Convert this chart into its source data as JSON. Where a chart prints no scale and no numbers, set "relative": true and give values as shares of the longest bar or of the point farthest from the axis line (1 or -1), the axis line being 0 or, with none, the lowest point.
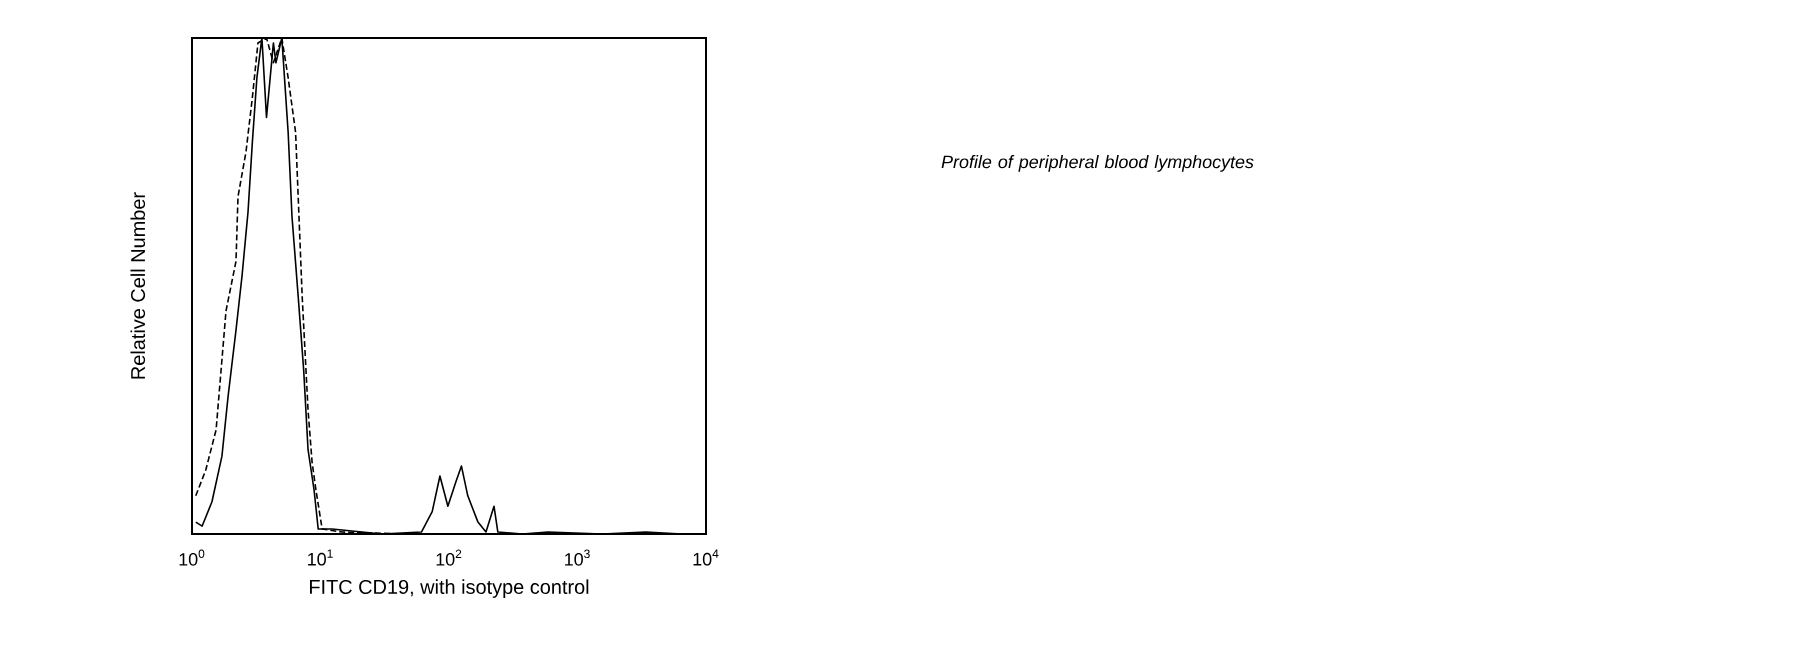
{
  "chart_data": {
    "type": "line",
    "relative": true,
    "log": "x",
    "xlabel": "FITC CD19, with isotype control",
    "ylabel": "Relative Cell Number",
    "xlim": [
      1,
      10000
    ],
    "xticks": [
      {
        "value": 1,
        "label": "10$^{0}$"
      },
      {
        "value": 10,
        "label": "10$^{1}$"
      },
      {
        "value": 100,
        "label": "10$^{2}$"
      },
      {
        "value": 1000,
        "label": "10$^{3}$"
      },
      {
        "value": 10000,
        "label": "10$^{4}$"
      }
    ],
    "annotations": [
      "*Profile of peripheral blood lymphocytes*"
    ],
    "series": [
      {
        "color": "#000000",
        "line_style": "solid",
        "x": [
          1.07,
          1.2,
          1.43,
          1.71,
          1.91,
          2.2,
          2.45,
          2.73,
          2.95,
          3.2,
          3.5,
          3.8,
          4.3,
          4.5,
          5.0,
          5.6,
          6.0,
          6.7,
          7.4,
          8.0,
          8.9,
          9.6,
          12.3,
          30,
          61,
          74,
          85,
          98,
          113,
          125,
          140,
          168,
          194,
          224,
          240,
          370,
          590,
          1550,
          3400,
          6500,
          10000
        ],
        "values": [
          0.024,
          0.016,
          0.065,
          0.157,
          0.278,
          0.411,
          0.52,
          0.65,
          0.79,
          0.92,
          1,
          0.84,
          0.99,
          0.95,
          1,
          0.81,
          0.64,
          0.48,
          0.33,
          0.17,
          0.09,
          0.01,
          0.01,
          0,
          0.004,
          0.045,
          0.117,
          0.056,
          0.105,
          0.137,
          0.077,
          0.024,
          0.004,
          0.056,
          0.004,
          0,
          0.004,
          0,
          0.004,
          0,
          0
        ]
      },
      {
        "color": "#000000",
        "line_style": "dashed",
        "x": [
          1.07,
          1.28,
          1.54,
          1.84,
          2.2,
          2.28,
          2.63,
          2.95,
          3.26,
          3.8,
          4.3,
          5.0,
          5.6,
          6.4,
          7.2,
          8.0,
          8.6,
          9.2,
          10.3,
          14.7,
          43,
          370,
          10000
        ],
        "values": [
          0.077,
          0.129,
          0.21,
          0.45,
          0.55,
          0.68,
          0.77,
          0.88,
          0.99,
          1,
          0.95,
          1,
          0.92,
          0.81,
          0.48,
          0.25,
          0.145,
          0.09,
          0.01,
          0.004,
          0,
          0,
          0
        ]
      }
    ]
  }
}
